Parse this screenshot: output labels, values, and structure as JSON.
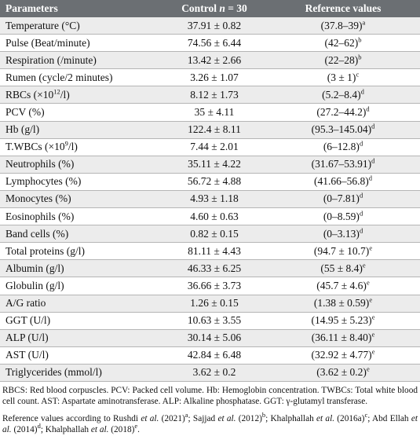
{
  "table": {
    "headers": {
      "col1": "Parameters",
      "col2_prefix": "Control ",
      "col2_n": "n",
      "col2_suffix": " = 30",
      "col3": "Reference values"
    },
    "rows": [
      {
        "param": "Temperature (°C)",
        "control": "37.91 ± 0.82",
        "ref": "(37.8–39)",
        "sup": "a"
      },
      {
        "param": "Pulse (Beat/minute)",
        "control": "74.56 ± 6.44",
        "ref": "(42–62)",
        "sup": "b"
      },
      {
        "param": "Respiration (/minute)",
        "control": "13.42 ± 2.66",
        "ref": "(22–28)",
        "sup": "b"
      },
      {
        "param": "Rumen (cycle/2 minutes)",
        "control": "3.26 ± 1.07",
        "ref": "(3 ± 1)",
        "sup": "c"
      },
      {
        "param": "RBCs (×10",
        "param_sup": "12",
        "param_after": "/l)",
        "control": "8.12 ± 1.73",
        "ref": "(5.2–8.4)",
        "sup": "d"
      },
      {
        "param": "PCV (%)",
        "control": "35 ± 4.11",
        "ref": "(27.2–44.2)",
        "sup": "d"
      },
      {
        "param": "Hb (g/l)",
        "control": "122.4 ± 8.11",
        "ref": "(95.3–145.04)",
        "sup": "d"
      },
      {
        "param": "T.WBCs (×10",
        "param_sup": "9",
        "param_after": "/l)",
        "control": "7.44 ± 2.01",
        "ref": "(6–12.8)",
        "sup": "d"
      },
      {
        "param": "Neutrophils (%)",
        "control": "35.11 ± 4.22",
        "ref": "(31.67–53.91)",
        "sup": "d"
      },
      {
        "param": "Lymphocytes (%)",
        "control": "56.72 ± 4.88",
        "ref": "(41.66–56.8)",
        "sup": "d"
      },
      {
        "param": "Monocytes (%)",
        "control": "4.93 ± 1.18",
        "ref": "(0–7.81)",
        "sup": "d"
      },
      {
        "param": "Eosinophils (%)",
        "control": "4.60 ± 0.63",
        "ref": "(0–8.59)",
        "sup": "d"
      },
      {
        "param": "Band cells (%)",
        "control": "0.82 ± 0.15",
        "ref": "(0–3.13)",
        "sup": "d"
      },
      {
        "param": "Total proteins (g/l)",
        "control": "81.11 ± 4.43",
        "ref": "(94.7 ± 10.7)",
        "sup": "e"
      },
      {
        "param": "Albumin (g/l)",
        "control": "46.33 ± 6.25",
        "ref": "(55 ± 8.4)",
        "sup": "e"
      },
      {
        "param": "Globulin (g/l)",
        "control": "36.66 ± 3.73",
        "ref": "(45.7 ± 4.6)",
        "sup": "e"
      },
      {
        "param": "A/G ratio",
        "control": "1.26 ± 0.15",
        "ref": "(1.38 ± 0.59)",
        "sup": "e"
      },
      {
        "param": "GGT (U/l)",
        "control": "10.63 ± 3.55",
        "ref": "(14.95 ± 5.23)",
        "sup": "e"
      },
      {
        "param": "ALP (U/l)",
        "control": "30.14 ± 5.06",
        "ref": "(36.11 ± 8.40)",
        "sup": "e"
      },
      {
        "param": "AST (U/l)",
        "control": "42.84 ± 6.48",
        "ref": "(32.92 ± 4.77)",
        "sup": "e"
      },
      {
        "param": "Triglycerides (mmol/l)",
        "control": "3.62 ± 0.2",
        "ref": "(3.62 ± 0.2)",
        "sup": "e"
      }
    ]
  },
  "notes": {
    "abbrev": "RBCS: Red blood corpuscles. PCV: Packed cell volume. Hb: Hemoglobin concentration. TWBCs: Total white blood cell count. AST: Aspartate aminotransferase. ALP: Alkaline phosphatase. GGT: γ-glutamyl transferase.",
    "refs": [
      {
        "pre": "Reference values according to Rushdi ",
        "etal": "et al.",
        "post": " (2021)",
        "sup": "a",
        "sep": "; "
      },
      {
        "pre": "Sajjad ",
        "etal": "et al.",
        "post": " (2012)",
        "sup": "b",
        "sep": "; "
      },
      {
        "pre": "Khalphallah ",
        "etal": "et al.",
        "post": " (2016a)",
        "sup": "c",
        "sep": "; "
      },
      {
        "pre": "Abd Ellah ",
        "etal": "et al.",
        "post": " (2014)",
        "sup": "d",
        "sep": "; "
      },
      {
        "pre": "Khalphallah ",
        "etal": "et al.",
        "post": " (2018)",
        "sup": "e",
        "sep": "."
      }
    ]
  }
}
